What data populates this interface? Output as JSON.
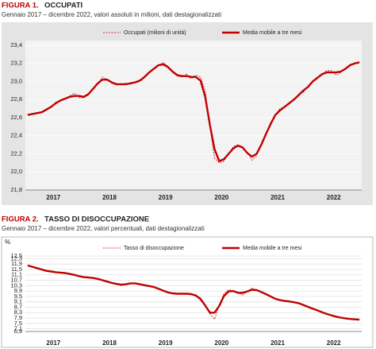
{
  "chart_data": [
    {
      "type": "line",
      "figure_label": "FIGURA 1.",
      "title": "OCCUPATI",
      "subtitle": "Gennaio 2017 – dicembre 2022, valori assoluti in milioni, dati destagionalizzati",
      "categories": [
        null,
        null,
        null,
        null,
        null,
        "2017",
        null,
        null,
        null,
        null,
        null,
        null,
        null,
        null,
        null,
        null,
        null,
        "2018",
        null,
        null,
        null,
        null,
        null,
        null,
        null,
        null,
        null,
        null,
        null,
        "2019",
        null,
        null,
        null,
        null,
        null,
        null,
        null,
        null,
        null,
        null,
        null,
        "2020",
        null,
        null,
        null,
        null,
        null,
        null,
        null,
        null,
        null,
        null,
        null,
        "2021",
        null,
        null,
        null,
        null,
        null,
        null,
        null,
        null,
        null,
        null,
        null,
        "2022",
        null,
        null,
        null,
        null,
        null,
        null
      ],
      "series": [
        {
          "name": "Occupati (milioni di unità)",
          "color": "#c00000",
          "style": "dashed",
          "values": [
            22.63,
            22.64,
            22.65,
            22.66,
            22.68,
            22.72,
            22.77,
            22.79,
            22.81,
            22.84,
            22.87,
            22.82,
            22.82,
            22.85,
            22.92,
            22.98,
            23.05,
            23.02,
            22.98,
            22.96,
            22.97,
            22.98,
            22.97,
            22.99,
            23.0,
            23.04,
            23.1,
            23.15,
            23.18,
            23.21,
            23.17,
            23.1,
            23.06,
            23.05,
            23.08,
            23.03,
            23.07,
            23.05,
            22.9,
            22.5,
            22.15,
            22.1,
            22.12,
            22.2,
            22.28,
            22.3,
            22.28,
            22.22,
            22.13,
            22.18,
            22.3,
            22.42,
            22.55,
            22.63,
            22.7,
            22.72,
            22.75,
            22.8,
            22.86,
            22.88,
            22.95,
            23.0,
            23.05,
            23.08,
            23.12,
            23.12,
            23.07,
            23.1,
            23.14,
            23.19,
            23.2,
            23.22
          ]
        },
        {
          "name": "Media mobile a tre mesi",
          "color": "#c00000",
          "style": "solid",
          "values": [
            22.63,
            22.64,
            22.65,
            22.66,
            22.69,
            22.72,
            22.76,
            22.79,
            22.81,
            22.83,
            22.84,
            22.84,
            22.83,
            22.86,
            22.92,
            22.98,
            23.02,
            23.02,
            22.99,
            22.97,
            22.97,
            22.97,
            22.98,
            22.99,
            23.01,
            23.05,
            23.1,
            23.14,
            23.18,
            23.19,
            23.16,
            23.11,
            23.07,
            23.06,
            23.06,
            23.05,
            23.05,
            23.01,
            22.83,
            22.52,
            22.25,
            22.12,
            22.14,
            22.2,
            22.26,
            22.29,
            22.27,
            22.21,
            22.17,
            22.2,
            22.3,
            22.42,
            22.53,
            22.63,
            22.68,
            22.72,
            22.76,
            22.8,
            22.85,
            22.9,
            22.94,
            23.0,
            23.04,
            23.08,
            23.1,
            23.1,
            23.1,
            23.11,
            23.14,
            23.18,
            23.2,
            23.21
          ]
        }
      ],
      "ylim": [
        21.8,
        23.4
      ],
      "yticks": [
        {
          "value": 21.8,
          "label": "21,8"
        },
        {
          "value": 22.0,
          "label": "22,0"
        },
        {
          "value": 22.2,
          "label": "22,2"
        },
        {
          "value": 22.4,
          "label": "22,4"
        },
        {
          "value": 22.6,
          "label": "22,6"
        },
        {
          "value": 22.8,
          "label": "22,8"
        },
        {
          "value": 23.0,
          "label": "23,0"
        },
        {
          "value": 23.2,
          "label": "23,2"
        },
        {
          "value": 23.4,
          "label": "23,4"
        }
      ],
      "grid": true
    },
    {
      "type": "line",
      "figure_label": "FIGURA 2.",
      "title": "TASSO DI DISOCCUPAZIONE",
      "subtitle": "Gennaio 2017 – dicembre 2022, valori percentuali, dati destagionalizzati",
      "y_label": "%",
      "categories": [
        null,
        null,
        null,
        null,
        null,
        "2017",
        null,
        null,
        null,
        null,
        null,
        null,
        null,
        null,
        null,
        null,
        null,
        "2018",
        null,
        null,
        null,
        null,
        null,
        null,
        null,
        null,
        null,
        null,
        null,
        "2019",
        null,
        null,
        null,
        null,
        null,
        null,
        null,
        null,
        null,
        null,
        null,
        "2020",
        null,
        null,
        null,
        null,
        null,
        null,
        null,
        null,
        null,
        null,
        null,
        "2021",
        null,
        null,
        null,
        null,
        null,
        null,
        null,
        null,
        null,
        null,
        null,
        "2022",
        null,
        null,
        null,
        null,
        null,
        null
      ],
      "series": [
        {
          "name": "Tasso di disoccupazione",
          "color": "#c00000",
          "style": "dashed",
          "values": [
            11.8,
            11.7,
            11.6,
            11.5,
            11.4,
            11.3,
            11.3,
            11.3,
            11.2,
            11.2,
            11.1,
            11.0,
            10.9,
            10.9,
            10.9,
            10.8,
            10.7,
            10.6,
            10.5,
            10.4,
            10.3,
            10.4,
            10.5,
            10.5,
            10.4,
            10.3,
            10.3,
            10.2,
            10.1,
            9.9,
            9.8,
            9.7,
            9.7,
            9.7,
            9.7,
            9.7,
            9.6,
            9.4,
            8.9,
            8.2,
            7.8,
            8.9,
            9.7,
            10.0,
            9.9,
            9.8,
            9.6,
            9.9,
            10.1,
            10.0,
            9.8,
            9.7,
            9.5,
            9.3,
            9.2,
            9.2,
            9.1,
            9.1,
            9.0,
            8.9,
            8.7,
            8.6,
            8.5,
            8.3,
            8.2,
            8.1,
            8.0,
            7.9,
            7.9,
            7.8,
            7.8,
            7.8
          ]
        },
        {
          "name": "Media mobile a tre mesi",
          "color": "#c00000",
          "style": "solid",
          "values": [
            11.8,
            11.7,
            11.6,
            11.5,
            11.4,
            11.35,
            11.3,
            11.27,
            11.23,
            11.17,
            11.1,
            11.0,
            10.93,
            10.9,
            10.87,
            10.8,
            10.7,
            10.6,
            10.5,
            10.43,
            10.37,
            10.4,
            10.47,
            10.47,
            10.4,
            10.33,
            10.27,
            10.2,
            10.07,
            9.93,
            9.8,
            9.73,
            9.7,
            9.7,
            9.7,
            9.67,
            9.57,
            9.3,
            8.83,
            8.3,
            8.3,
            8.8,
            9.53,
            9.87,
            9.9,
            9.77,
            9.77,
            9.87,
            10.0,
            9.97,
            9.83,
            9.67,
            9.5,
            9.33,
            9.23,
            9.17,
            9.13,
            9.07,
            9.0,
            8.87,
            8.73,
            8.6,
            8.47,
            8.33,
            8.2,
            8.1,
            8.0,
            7.93,
            7.87,
            7.83,
            7.8,
            7.78
          ]
        }
      ],
      "ylim": [
        6.9,
        12.5
      ],
      "yticks": [
        {
          "value": 6.9,
          "label": "6,9"
        },
        {
          "value": 7.1,
          "label": "7,1"
        },
        {
          "value": 7.5,
          "label": "7,5"
        },
        {
          "value": 7.9,
          "label": "7,9"
        },
        {
          "value": 8.3,
          "label": "8,3"
        },
        {
          "value": 8.7,
          "label": "8,7"
        },
        {
          "value": 9.1,
          "label": "9,1"
        },
        {
          "value": 9.5,
          "label": "9,5"
        },
        {
          "value": 9.9,
          "label": "9,9"
        },
        {
          "value": 10.3,
          "label": "10,3"
        },
        {
          "value": 10.7,
          "label": "10,7"
        },
        {
          "value": 11.1,
          "label": "11,1"
        },
        {
          "value": 11.5,
          "label": "11,5"
        },
        {
          "value": 11.9,
          "label": "11,9"
        },
        {
          "value": 12.3,
          "label": "12,3"
        },
        {
          "value": 12.5,
          "label": "12,5"
        }
      ],
      "grid": true
    }
  ]
}
